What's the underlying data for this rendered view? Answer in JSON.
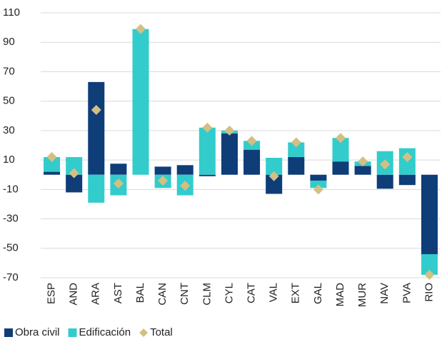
{
  "chart_data": {
    "type": "bar",
    "stacked": true,
    "categories": [
      "ESP",
      "AND",
      "ARA",
      "AST",
      "BAL",
      "CAN",
      "CNT",
      "CLM",
      "CYL",
      "CAT",
      "VAL",
      "EXT",
      "GAL",
      "MAD",
      "MUR",
      "NAV",
      "PVA",
      "RIO"
    ],
    "series": [
      {
        "name": "Obra civil",
        "color": "#0e3d78",
        "values": [
          2,
          -12,
          63,
          7.5,
          0,
          5.5,
          6.5,
          -1,
          28,
          17,
          -13,
          12,
          -4,
          9,
          6,
          -9.5,
          -7,
          -54
        ]
      },
      {
        "name": "Edificación",
        "color": "#33cccc",
        "values": [
          10,
          12,
          -19,
          -14,
          99,
          -9,
          -14,
          32,
          2,
          6,
          11.5,
          10,
          -5,
          16,
          3,
          16,
          18,
          -14
        ]
      },
      {
        "name": "Total",
        "type": "scatter",
        "marker": "diamond",
        "color": "#d4bf82",
        "values": [
          12,
          1,
          44,
          -6,
          99,
          -4,
          -7.5,
          32,
          30,
          23,
          -1,
          22,
          -10,
          25,
          9,
          7,
          12,
          -68
        ]
      }
    ],
    "ylim": [
      -70,
      110
    ],
    "yticks": [
      -70,
      -50,
      -30,
      -10,
      10,
      30,
      50,
      70,
      90,
      110
    ],
    "grid": true,
    "legend": "bottom"
  }
}
